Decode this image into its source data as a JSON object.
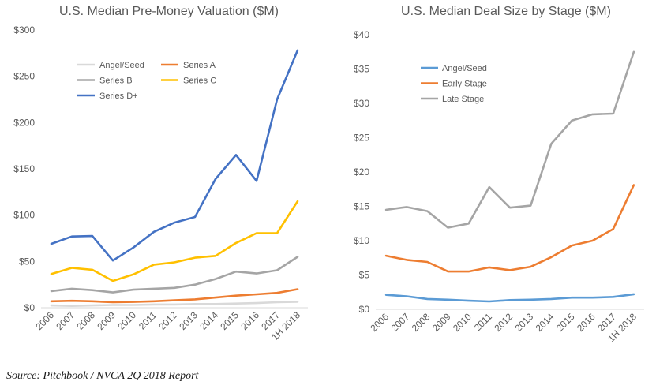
{
  "source_note": "Source: Pitchbook / NVCA 2Q 2018 Report",
  "chart_data": [
    {
      "type": "line",
      "title": "U.S. Median Pre-Money Valuation ($M)",
      "xlabel": "",
      "ylabel": "",
      "x": [
        "2006",
        "2007",
        "2008",
        "2009",
        "2010",
        "2011",
        "2012",
        "2013",
        "2014",
        "2015",
        "2016",
        "2017",
        "1H 2018"
      ],
      "ylim": [
        0,
        300
      ],
      "yticks": [
        0,
        50,
        100,
        150,
        200,
        250,
        300
      ],
      "ytick_labels": [
        "$0",
        "$50",
        "$100",
        "$150",
        "$200",
        "$250",
        "$300"
      ],
      "grid": false,
      "legend_position": "top-left",
      "series": [
        {
          "name": "Angel/Seed",
          "color": "#d9d9d9",
          "values": [
            2.5,
            2,
            2.5,
            3,
            3,
            3.5,
            3.5,
            4,
            4,
            4.5,
            5,
            6,
            6.5
          ]
        },
        {
          "name": "Series A",
          "color": "#ed7d31",
          "values": [
            7,
            7.5,
            7,
            6,
            6.3,
            7,
            8,
            9,
            11,
            13,
            14.5,
            16,
            20
          ]
        },
        {
          "name": "Series B",
          "color": "#a5a5a5",
          "values": [
            18,
            20.5,
            19,
            16.5,
            19.5,
            20.5,
            21.5,
            25,
            31,
            39,
            37,
            40.5,
            55
          ]
        },
        {
          "name": "Series C",
          "color": "#ffc000",
          "values": [
            36.5,
            43,
            41,
            29,
            36,
            46.5,
            49,
            54,
            56,
            70,
            80.5,
            80.5,
            115
          ]
        },
        {
          "name": "Series D+",
          "color": "#4472c4",
          "values": [
            69,
            77,
            77.5,
            51,
            65,
            82,
            92,
            98,
            139,
            165,
            137,
            225,
            278
          ]
        }
      ]
    },
    {
      "type": "line",
      "title": "U.S. Median Deal Size by Stage ($M)",
      "xlabel": "",
      "ylabel": "",
      "x": [
        "2006",
        "2007",
        "2008",
        "2009",
        "2010",
        "2011",
        "2012",
        "2013",
        "2014",
        "2015",
        "2016",
        "2017",
        "1H 2018"
      ],
      "ylim": [
        0,
        40
      ],
      "yticks": [
        0,
        5,
        10,
        15,
        20,
        25,
        30,
        35,
        40
      ],
      "ytick_labels": [
        "$0",
        "$5",
        "$10",
        "$15",
        "$20",
        "$25",
        "$30",
        "$35",
        "$40"
      ],
      "grid": false,
      "legend_position": "top-left",
      "series": [
        {
          "name": "Angel/Seed",
          "color": "#5b9bd5",
          "values": [
            2.1,
            1.9,
            1.5,
            1.4,
            1.25,
            1.15,
            1.35,
            1.4,
            1.5,
            1.7,
            1.7,
            1.8,
            2.2
          ]
        },
        {
          "name": "Early Stage",
          "color": "#ed7d31",
          "values": [
            7.8,
            7.2,
            6.9,
            5.5,
            5.5,
            6.1,
            5.7,
            6.2,
            7.6,
            9.3,
            10.0,
            11.7,
            18.1
          ]
        },
        {
          "name": "Late Stage",
          "color": "#a5a5a5",
          "values": [
            14.5,
            14.9,
            14.3,
            11.9,
            12.5,
            17.8,
            14.8,
            15.1,
            24.1,
            27.5,
            28.4,
            28.5,
            37.5
          ]
        }
      ]
    }
  ]
}
